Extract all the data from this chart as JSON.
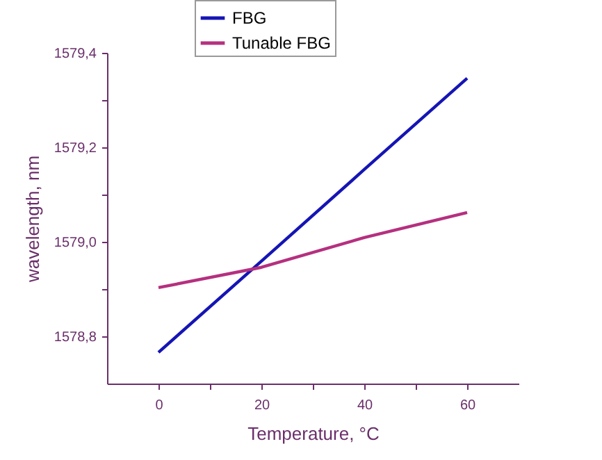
{
  "chart_data": {
    "type": "line",
    "xlabel": "Temperature, °C",
    "ylabel": "wavelength, nm",
    "x": [
      0,
      20,
      40,
      60
    ],
    "series": [
      {
        "name": "FBG",
        "color": "#1515b5",
        "values": [
          1578.766,
          1578.959,
          1579.153,
          1579.346
        ]
      },
      {
        "name": "Tunable FBG",
        "color": "#b5307f",
        "values": [
          1578.903,
          1578.946,
          1579.009,
          1579.062
        ]
      }
    ],
    "xlim": [
      -10,
      70
    ],
    "xticks": [
      0,
      {
        "value": 10,
        "label": null
      },
      20,
      {
        "value": 30,
        "label": null
      },
      40,
      {
        "value": 50,
        "label": null
      },
      60
    ],
    "ylim": [
      1578.7,
      1579.4
    ],
    "yticks": [
      {
        "value": 1578.8,
        "label": "1578,8"
      },
      {
        "value": 1578.9,
        "label": null
      },
      {
        "value": 1579.0,
        "label": "1579,0"
      },
      {
        "value": 1579.1,
        "label": null
      },
      {
        "value": 1579.2,
        "label": "1579,2"
      },
      {
        "value": 1579.3,
        "label": null
      },
      {
        "value": 1579.4,
        "label": "1579,4"
      }
    ],
    "grid": false,
    "legend": "top",
    "marker": "none",
    "line_style": "solid"
  }
}
